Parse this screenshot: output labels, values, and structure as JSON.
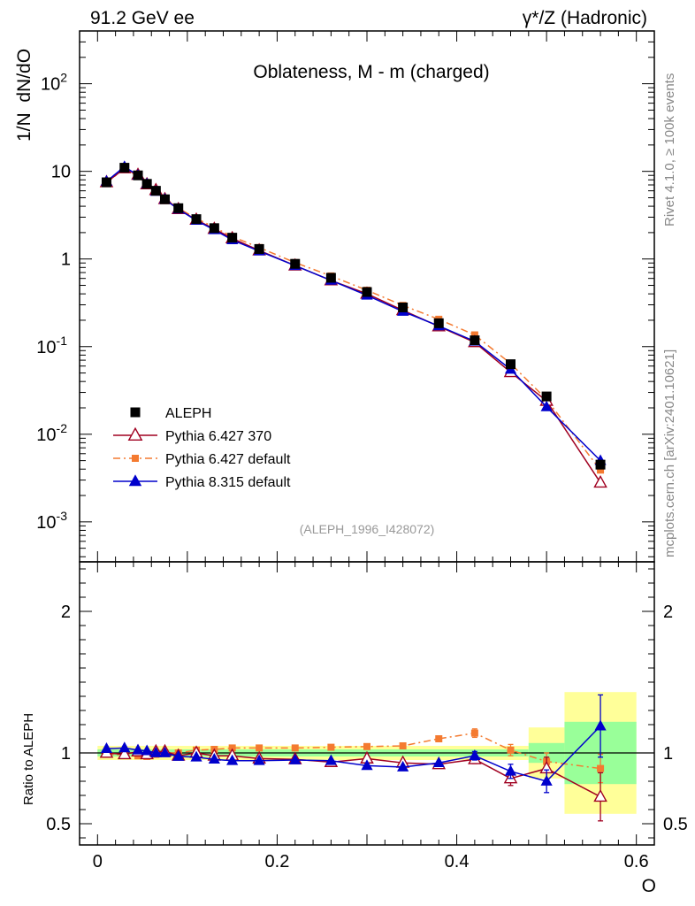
{
  "header": {
    "left": "91.2 GeV ee",
    "right": "γ*/Z (Hadronic)"
  },
  "side": {
    "rivet": "Rivet 4.1.0, ≥ 100k events",
    "mcplots": "mcplots.cern.ch [arXiv:2401.10621]"
  },
  "chart_data": {
    "type": "scatter",
    "title": "Oblateness, M - m (charged)",
    "analysis_id": "(ALEPH_1996_I428072)",
    "xlabel": "O",
    "ylabel": "1/N  dN/dO",
    "ratio_ylabel": "Ratio to ALEPH",
    "xlim": [
      -0.02,
      0.62
    ],
    "ylim": [
      0.00035,
      400
    ],
    "yscale": "log",
    "ratio_ylim": [
      0.35,
      2.35
    ],
    "x_ticks": [
      "0",
      "0.2",
      "0.4",
      "0.6"
    ],
    "y_ticks": [
      "10^-3",
      "10^-2",
      "10^-1",
      "1",
      "10",
      "10^2"
    ],
    "ratio_ticks": [
      "0.5",
      "1",
      "2"
    ],
    "legend_position": "middle-left",
    "x": [
      0.01,
      0.03,
      0.045,
      0.055,
      0.065,
      0.075,
      0.09,
      0.11,
      0.13,
      0.15,
      0.18,
      0.22,
      0.26,
      0.3,
      0.34,
      0.38,
      0.42,
      0.46,
      0.5,
      0.56
    ],
    "band": [
      {
        "x0": 0.0,
        "x1": 0.48,
        "inner": 0.025,
        "outer": 0.05
      },
      {
        "x0": 0.48,
        "x1": 0.52,
        "inner": 0.07,
        "outer": 0.18
      },
      {
        "x0": 0.52,
        "x1": 0.6,
        "inner": 0.22,
        "outer": 0.43
      }
    ],
    "series": [
      {
        "name": "ALEPH",
        "color": "#000000",
        "marker": "square",
        "values": [
          7.5,
          11.0,
          9.0,
          7.2,
          6.0,
          4.8,
          3.8,
          2.85,
          2.25,
          1.75,
          1.3,
          0.88,
          0.61,
          0.42,
          0.28,
          0.185,
          0.118,
          0.063,
          0.027,
          0.0045
        ]
      },
      {
        "name": "Pythia 6.427 370",
        "color": "#a00020",
        "marker": "open-triangle",
        "values": [
          7.5,
          10.8,
          9.1,
          7.1,
          6.1,
          4.8,
          3.7,
          2.8,
          2.2,
          1.72,
          1.25,
          0.84,
          0.57,
          0.4,
          0.26,
          0.17,
          0.112,
          0.051,
          0.024,
          0.0028
        ],
        "ratio": [
          1.0,
          0.99,
          1.01,
          0.99,
          1.01,
          1.01,
          0.98,
          1.0,
          0.98,
          0.98,
          0.96,
          0.955,
          0.935,
          0.96,
          0.93,
          0.92,
          0.955,
          0.82,
          0.89,
          0.69
        ],
        "ratio_err": [
          0.005,
          0.005,
          0.005,
          0.005,
          0.005,
          0.005,
          0.005,
          0.005,
          0.005,
          0.005,
          0.008,
          0.01,
          0.01,
          0.012,
          0.015,
          0.018,
          0.03,
          0.05,
          0.08,
          0.17
        ]
      },
      {
        "name": "Pythia 6.427 default",
        "color": "#f47a30",
        "marker": "square",
        "values": [
          7.4,
          10.8,
          8.8,
          7.0,
          5.9,
          4.85,
          3.8,
          2.9,
          2.3,
          1.8,
          1.35,
          0.91,
          0.64,
          0.44,
          0.295,
          0.205,
          0.136,
          0.064,
          0.025,
          0.0039
        ],
        "ratio": [
          0.99,
          0.985,
          0.98,
          0.975,
          0.99,
          1.0,
          1.0,
          1.02,
          1.025,
          1.035,
          1.035,
          1.035,
          1.04,
          1.045,
          1.05,
          1.1,
          1.14,
          1.02,
          0.94,
          0.89
        ],
        "ratio_err": [
          0.005,
          0.005,
          0.005,
          0.005,
          0.005,
          0.005,
          0.005,
          0.005,
          0.005,
          0.005,
          0.008,
          0.01,
          0.01,
          0.012,
          0.015,
          0.02,
          0.03,
          0.04,
          0.06,
          0.1
        ]
      },
      {
        "name": "Pythia 8.315 default",
        "color": "#0000cc",
        "marker": "triangle",
        "values": [
          7.7,
          11.3,
          9.0,
          7.2,
          5.9,
          4.8,
          3.7,
          2.75,
          2.15,
          1.65,
          1.23,
          0.84,
          0.57,
          0.385,
          0.252,
          0.172,
          0.115,
          0.055,
          0.0205,
          0.005
        ],
        "ratio": [
          1.03,
          1.035,
          1.02,
          1.015,
          1.0,
          1.0,
          0.975,
          0.97,
          0.955,
          0.945,
          0.945,
          0.95,
          0.945,
          0.91,
          0.9,
          0.93,
          0.98,
          0.87,
          0.8,
          1.19
        ],
        "ratio_err": [
          0.005,
          0.005,
          0.005,
          0.005,
          0.005,
          0.005,
          0.005,
          0.005,
          0.005,
          0.008,
          0.008,
          0.01,
          0.01,
          0.012,
          0.015,
          0.02,
          0.03,
          0.05,
          0.08,
          0.22
        ]
      }
    ]
  }
}
